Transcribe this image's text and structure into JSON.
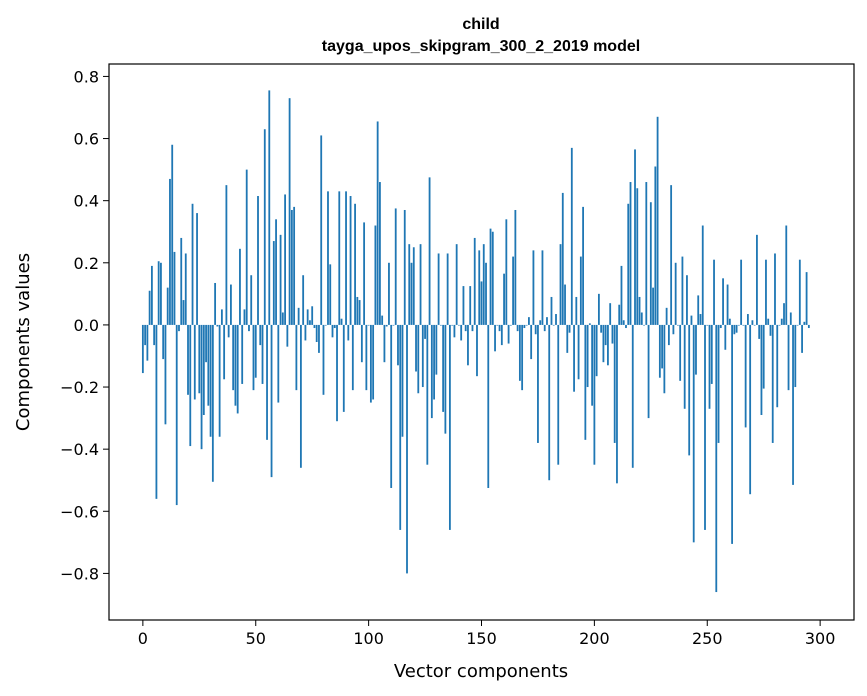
{
  "chart_data": {
    "type": "bar",
    "title_line1": "child",
    "title_line2": "tayga_upos_skipgram_300_2_2019 model",
    "xlabel": "Vector components",
    "ylabel": "Components values",
    "xlim": [
      -15,
      315
    ],
    "ylim": [
      -0.95,
      0.84
    ],
    "xticks": [
      0,
      50,
      100,
      150,
      200,
      250,
      300
    ],
    "xtick_labels": [
      "0",
      "50",
      "100",
      "150",
      "200",
      "250",
      "300"
    ],
    "yticks": [
      -0.8,
      -0.6,
      -0.4,
      -0.2,
      0.0,
      0.2,
      0.4,
      0.6,
      0.8
    ],
    "ytick_labels": [
      "−0.8",
      "−0.6",
      "−0.4",
      "−0.2",
      "0.0",
      "0.2",
      "0.4",
      "0.6",
      "0.8"
    ],
    "bar_color": "#1f77b4",
    "grid": false,
    "values": [
      -0.155,
      -0.065,
      -0.115,
      0.11,
      0.19,
      -0.065,
      -0.56,
      0.205,
      0.2,
      -0.11,
      -0.32,
      0.12,
      0.47,
      0.58,
      0.235,
      -0.58,
      -0.02,
      0.28,
      0.08,
      0.23,
      -0.225,
      -0.39,
      0.39,
      -0.24,
      0.36,
      -0.22,
      -0.4,
      -0.29,
      -0.12,
      -0.26,
      -0.36,
      -0.505,
      0.135,
      -0.005,
      -0.36,
      0.05,
      -0.175,
      0.45,
      -0.04,
      0.13,
      -0.21,
      -0.26,
      -0.285,
      0.245,
      -0.19,
      0.05,
      0.5,
      -0.02,
      0.16,
      -0.21,
      -0.17,
      0.415,
      -0.065,
      -0.19,
      0.63,
      -0.37,
      0.755,
      -0.49,
      0.27,
      0.34,
      -0.25,
      0.29,
      0.04,
      0.42,
      -0.07,
      0.73,
      0.37,
      0.38,
      -0.21,
      0.055,
      -0.46,
      0.16,
      -0.05,
      0.05,
      0.015,
      0.06,
      -0.01,
      -0.055,
      -0.09,
      0.61,
      -0.225,
      0.0,
      0.43,
      0.195,
      -0.04,
      -0.01,
      -0.31,
      0.43,
      0.02,
      -0.28,
      0.43,
      -0.05,
      0.415,
      -0.21,
      0.39,
      0.09,
      0.08,
      -0.12,
      0.33,
      -0.21,
      0.0,
      -0.25,
      -0.24,
      0.32,
      0.655,
      0.46,
      0.03,
      -0.12,
      -0.005,
      0.2,
      -0.525,
      0.0,
      0.375,
      -0.13,
      -0.66,
      -0.36,
      0.37,
      -0.8,
      0.26,
      0.2,
      0.25,
      -0.15,
      -0.22,
      0.26,
      -0.2,
      -0.045,
      -0.45,
      0.475,
      -0.3,
      -0.24,
      -0.16,
      0.23,
      0.0,
      -0.28,
      -0.35,
      0.23,
      -0.66,
      0.0,
      -0.04,
      0.26,
      0.0,
      -0.05,
      0.125,
      -0.02,
      -0.13,
      0.125,
      -0.02,
      0.28,
      -0.165,
      0.24,
      0.14,
      0.26,
      0.2,
      -0.525,
      0.31,
      0.3,
      -0.085,
      0.0,
      -0.02,
      -0.065,
      0.165,
      0.34,
      -0.06,
      0.0,
      0.22,
      0.37,
      -0.02,
      -0.18,
      -0.21,
      -0.01,
      0.0,
      0.025,
      -0.11,
      0.24,
      -0.03,
      -0.38,
      0.015,
      0.24,
      -0.02,
      0.025,
      -0.5,
      0.09,
      0.0,
      0.035,
      -0.45,
      0.26,
      0.425,
      0.13,
      -0.09,
      -0.025,
      0.57,
      -0.215,
      0.09,
      -0.175,
      0.22,
      0.38,
      -0.37,
      -0.2,
      0.005,
      -0.26,
      -0.45,
      -0.165,
      0.1,
      -0.025,
      -0.12,
      -0.065,
      -0.13,
      0.07,
      -0.06,
      -0.38,
      -0.51,
      0.065,
      0.19,
      0.015,
      -0.01,
      0.39,
      0.46,
      -0.46,
      0.565,
      0.44,
      0.09,
      0.04,
      0.0,
      0.46,
      -0.3,
      0.395,
      0.12,
      0.51,
      0.67,
      -0.17,
      -0.14,
      -0.22,
      0.055,
      -0.065,
      0.45,
      -0.03,
      0.2,
      0.0,
      -0.18,
      0.22,
      -0.27,
      0.16,
      -0.42,
      0.03,
      -0.7,
      -0.16,
      0.095,
      0.035,
      0.32,
      -0.66,
      0.0,
      -0.27,
      -0.19,
      0.21,
      -0.86,
      -0.38,
      -0.01,
      0.15,
      -0.08,
      0.13,
      0.02,
      -0.705,
      -0.03,
      -0.025,
      0.0,
      0.21,
      0.0,
      -0.33,
      0.035,
      -0.545,
      0.015,
      0.0,
      0.29,
      -0.045,
      -0.29,
      -0.205,
      0.21,
      0.02,
      -0.035,
      -0.38,
      0.23,
      -0.265,
      0.0,
      0.02,
      0.07,
      0.32,
      -0.21,
      0.04,
      -0.515,
      -0.2,
      0.0,
      0.21,
      -0.09,
      0.01,
      0.17,
      -0.01
    ]
  }
}
